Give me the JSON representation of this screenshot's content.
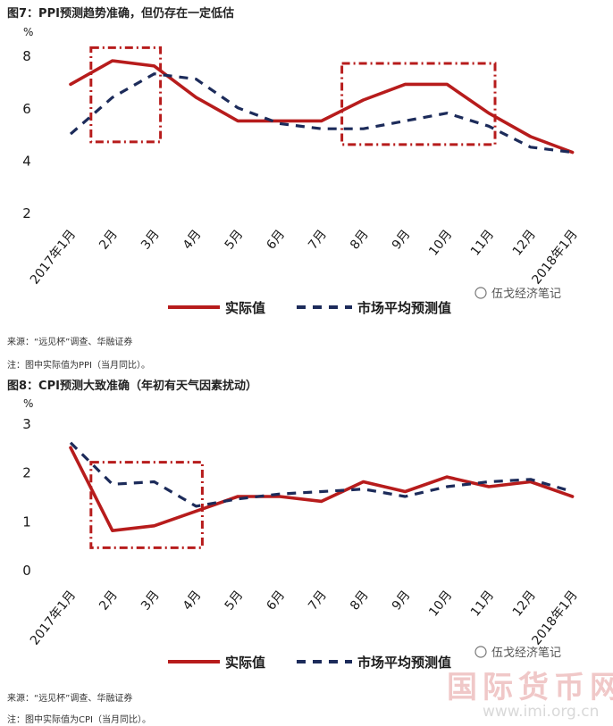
{
  "charts_meta": [
    {
      "title": "图7：PPI预测趋势准确，但仍存在一定低估",
      "source": "来源：“远见杯”调查、华融证券",
      "note": "注：图中实际值为PPI（当月同比）。",
      "watermark": "伍戈经济笔记"
    },
    {
      "title": "图8：CPI预测大致准确（年初有天气因素扰动）",
      "source": "来源：“远见杯”调查、华融证券",
      "note": "注：图中实际值为CPI（当月同比）。",
      "watermark": "伍戈经济笔记"
    }
  ],
  "site_watermark": {
    "name": "国际货币网",
    "url": "www.imi.org.cn"
  },
  "colors": {
    "actual": "#b71c1c",
    "forecast": "#1c2b5a",
    "box": "#b71c1c"
  },
  "chart_data": [
    {
      "type": "line",
      "title": "",
      "unit": "%",
      "categories": [
        "2017年1月",
        "2月",
        "3月",
        "4月",
        "5月",
        "6月",
        "7月",
        "8月",
        "9月",
        "10月",
        "11月",
        "12月",
        "2018年1月"
      ],
      "series": [
        {
          "name": "实际值",
          "style": "solid",
          "values": [
            6.9,
            7.8,
            7.6,
            6.4,
            5.5,
            5.5,
            5.5,
            6.3,
            6.9,
            6.9,
            5.8,
            4.9,
            4.3
          ]
        },
        {
          "name": "市场平均预测值",
          "style": "dashed",
          "values": [
            5.0,
            6.4,
            7.3,
            7.1,
            6.0,
            5.4,
            5.2,
            5.2,
            5.5,
            5.8,
            5.3,
            4.5,
            4.3
          ]
        }
      ],
      "ylim": [
        2,
        8
      ],
      "yticks": [
        2,
        4,
        6,
        8
      ],
      "highlight_boxes": [
        {
          "from": "2月",
          "to": "3月",
          "ymin": 4.7,
          "ymax": 8.3
        },
        {
          "from": "8月",
          "to": "11月",
          "ymin": 4.6,
          "ymax": 7.7
        }
      ],
      "grid": false,
      "legend": "bottom"
    },
    {
      "type": "line",
      "title": "",
      "unit": "%",
      "categories": [
        "2017年1月",
        "2月",
        "3月",
        "4月",
        "5月",
        "6月",
        "7月",
        "8月",
        "9月",
        "10月",
        "11月",
        "12月",
        "2018年1月"
      ],
      "series": [
        {
          "name": "实际值",
          "style": "solid",
          "values": [
            2.5,
            0.8,
            0.9,
            1.2,
            1.5,
            1.5,
            1.4,
            1.8,
            1.6,
            1.9,
            1.7,
            1.8,
            1.5
          ]
        },
        {
          "name": "市场平均预测值",
          "style": "dashed",
          "values": [
            2.6,
            1.75,
            1.8,
            1.3,
            1.45,
            1.55,
            1.6,
            1.65,
            1.5,
            1.7,
            1.8,
            1.85,
            1.6
          ]
        }
      ],
      "ylim": [
        0,
        3
      ],
      "yticks": [
        0,
        1,
        2,
        3
      ],
      "highlight_boxes": [
        {
          "from": "2月",
          "to": "4月",
          "ymin": 0.45,
          "ymax": 2.2
        }
      ],
      "grid": false,
      "legend": "bottom"
    }
  ]
}
